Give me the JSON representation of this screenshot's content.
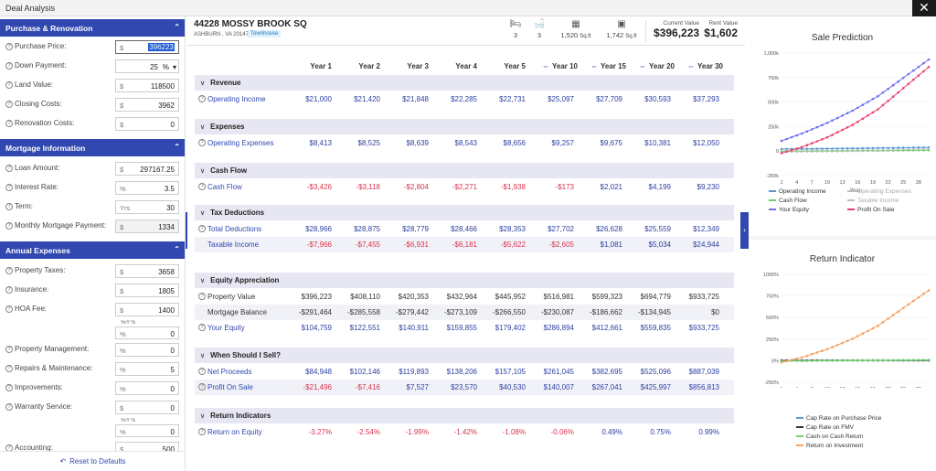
{
  "window": {
    "title": "Deal Analysis",
    "close": "✕"
  },
  "left": {
    "sections": {
      "purchase": "Purchase & Renovation",
      "mortgage": "Mortgage Information",
      "expenses": "Annual Expenses"
    },
    "fields": {
      "purchase_price": {
        "label": "Purchase Price:",
        "prefix": "$",
        "value": "396223"
      },
      "down_payment": {
        "label": "Down Payment:",
        "value": "25",
        "unit": "%"
      },
      "land_value": {
        "label": "Land Value:",
        "prefix": "$",
        "value": "118500"
      },
      "closing_costs": {
        "label": "Closing Costs:",
        "prefix": "$",
        "value": "3962"
      },
      "renovation_costs": {
        "label": "Renovation Costs:",
        "prefix": "$",
        "value": "0"
      },
      "loan_amount": {
        "label": "Loan Amount:",
        "prefix": "$",
        "value": "297167.25"
      },
      "interest_rate": {
        "label": "Interest Rate:",
        "prefix": "%",
        "value": "3.5"
      },
      "term": {
        "label": "Term:",
        "prefix": "Yrs",
        "value": "30"
      },
      "monthly_payment": {
        "label": "Monthly Mortgage Payment:",
        "prefix": "$",
        "value": "1334"
      },
      "property_taxes": {
        "label": "Property Taxes:",
        "prefix": "$",
        "value": "3658"
      },
      "insurance": {
        "label": "Insurance:",
        "prefix": "$",
        "value": "1805"
      },
      "hoa_fee": {
        "label": "HOA Fee:",
        "prefix": "$",
        "value": "1400"
      },
      "hoa_yoy": {
        "prefix": "%",
        "value": "0"
      },
      "property_management": {
        "label": "Property Management:",
        "prefix": "%",
        "value": "0"
      },
      "repairs": {
        "label": "Repairs & Maintenance:",
        "prefix": "%",
        "value": "5"
      },
      "improvements": {
        "label": "Improvements:",
        "prefix": "%",
        "value": "0"
      },
      "warranty": {
        "label": "Warranty Service:",
        "prefix": "$",
        "value": "0"
      },
      "warranty_yoy": {
        "prefix": "%",
        "value": "0"
      },
      "accounting": {
        "label": "Accounting:",
        "prefix": "$",
        "value": "500"
      }
    },
    "yoy_label": "YoY %",
    "reset": "Reset to Defaults"
  },
  "header": {
    "address": "44228 MOSSY BROOK SQ",
    "city": "ASHBURN , VA 20147",
    "type": "Townhouse",
    "beds": "3",
    "baths": "3",
    "sqft": "1,520",
    "sqft_unit": "Sq.ft",
    "lot": "1,742",
    "lot_unit": "Sq.ft",
    "current_value_label": "Current Value",
    "current_value": "$396,223",
    "rent_value_label": "Rent Value",
    "rent_value": "$1,602"
  },
  "table": {
    "columns": [
      "Year 1",
      "Year 2",
      "Year 3",
      "Year 4",
      "Year 5",
      "Year 10",
      "Year 15",
      "Year 20",
      "Year 30"
    ],
    "sections": [
      {
        "title": "Revenue",
        "rows": [
          {
            "name": "Operating Income",
            "values": [
              "$21,000",
              "$21,420",
              "$21,848",
              "$22,285",
              "$22,731",
              "$25,097",
              "$27,709",
              "$30,593",
              "$37,293"
            ]
          }
        ]
      },
      {
        "title": "Expenses",
        "rows": [
          {
            "name": "Operating Expenses",
            "values": [
              "$8,413",
              "$8,525",
              "$8,639",
              "$8,543",
              "$8,656",
              "$9,257",
              "$9,675",
              "$10,381",
              "$12,050"
            ]
          }
        ]
      },
      {
        "title": "Cash Flow",
        "rows": [
          {
            "name": "Cash Flow",
            "values": [
              "-$3,426",
              "-$3,118",
              "-$2,804",
              "-$2,271",
              "-$1,938",
              "-$173",
              "$2,021",
              "$4,199",
              "$9,230"
            ]
          }
        ]
      },
      {
        "title": "Tax Deductions",
        "rows": [
          {
            "name": "Total Deductions",
            "values": [
              "$28,966",
              "$28,875",
              "$28,779",
              "$28,466",
              "$28,353",
              "$27,702",
              "$26,628",
              "$25,559",
              "$12,349"
            ]
          },
          {
            "name": "Taxable Income",
            "values": [
              "-$7,966",
              "-$7,455",
              "-$6,931",
              "-$6,181",
              "-$5,622",
              "-$2,605",
              "$1,081",
              "$5,034",
              "$24,944"
            ]
          }
        ]
      },
      {
        "title": "Equity Appreciation",
        "rows": [
          {
            "name": "Property Value",
            "values": [
              "$396,223",
              "$408,110",
              "$420,353",
              "$432,964",
              "$445,952",
              "$516,981",
              "$599,323",
              "$694,779",
              "$933,725"
            ]
          },
          {
            "name": "Mortgage Balance",
            "values": [
              "-$291,464",
              "-$285,558",
              "-$279,442",
              "-$273,109",
              "-$266,550",
              "-$230,087",
              "-$186,662",
              "-$134,945",
              "$0"
            ]
          },
          {
            "name": "Your Equity",
            "values": [
              "$104,759",
              "$122,551",
              "$140,911",
              "$159,855",
              "$179,402",
              "$286,894",
              "$412,661",
              "$559,835",
              "$933,725"
            ]
          }
        ]
      },
      {
        "title": "When Should I Sell?",
        "rows": [
          {
            "name": "Net Proceeds",
            "values": [
              "$84,948",
              "$102,146",
              "$119,893",
              "$138,206",
              "$157,105",
              "$261,045",
              "$382,695",
              "$525,096",
              "$887,039"
            ]
          },
          {
            "name": "Profit On Sale",
            "values": [
              "-$21,496",
              "-$7,416",
              "$7,527",
              "$23,570",
              "$40,530",
              "$140,007",
              "$267,041",
              "$425,997",
              "$856,813"
            ]
          }
        ]
      },
      {
        "title": "Return Indicators",
        "rows": [
          {
            "name": "Return on Equity",
            "values": [
              "-3.27%",
              "-2.54%",
              "-1.99%",
              "-1.42%",
              "-1.08%",
              "-0.06%",
              "0.49%",
              "0.75%",
              "0.99%"
            ]
          }
        ]
      }
    ]
  },
  "chart_data": [
    {
      "type": "line",
      "title": "Sale Prediction",
      "xlabel": "Year",
      "ylabel": "",
      "x_ticks": [
        "1",
        "4",
        "7",
        "10",
        "13",
        "16",
        "19",
        "22",
        "25",
        "28"
      ],
      "y_ticks": [
        "-250k",
        "0",
        "250k",
        "500k",
        "750k",
        "1,000k"
      ],
      "ylim": [
        -250000,
        1000000
      ],
      "xlim": [
        1,
        30
      ],
      "legend_position": "bottom",
      "series": [
        {
          "name": "Operating Income",
          "color": "#5b9bd5",
          "x": [
            1,
            5,
            10,
            15,
            20,
            30
          ],
          "values": [
            21000,
            22731,
            25097,
            27709,
            30593,
            37293
          ]
        },
        {
          "name": "Operating Expenses",
          "color": "#c0c0c0",
          "dim": true,
          "x": [
            1,
            5,
            10,
            15,
            20,
            30
          ],
          "values": [
            8413,
            8656,
            9257,
            9675,
            10381,
            12050
          ]
        },
        {
          "name": "Cash Flow",
          "color": "#6dd06d",
          "x": [
            1,
            5,
            10,
            15,
            20,
            30
          ],
          "values": [
            -3426,
            -1938,
            -173,
            2021,
            4199,
            9230
          ]
        },
        {
          "name": "Taxable Income",
          "color": "#c0c0c0",
          "dim": true,
          "x": [
            1,
            5,
            10,
            15,
            20,
            30
          ],
          "values": [
            -7966,
            -5622,
            -2605,
            1081,
            5034,
            24944
          ]
        },
        {
          "name": "Your Equity",
          "color": "#6f6ff0",
          "x": [
            1,
            5,
            10,
            15,
            20,
            30
          ],
          "values": [
            104759,
            179402,
            286894,
            412661,
            559835,
            933725
          ]
        },
        {
          "name": "Profit On Sale",
          "color": "#ec3f6a",
          "x": [
            1,
            5,
            10,
            15,
            20,
            30
          ],
          "values": [
            -21496,
            40530,
            140007,
            267041,
            425997,
            856813
          ]
        }
      ]
    },
    {
      "type": "line",
      "title": "Return Indicator",
      "xlabel": "Year",
      "ylabel": "",
      "x_ticks": [
        "1",
        "4",
        "7",
        "10",
        "13",
        "16",
        "19",
        "22",
        "25",
        "28"
      ],
      "y_ticks": [
        "-250%",
        "0%",
        "250%",
        "500%",
        "750%",
        "1000%"
      ],
      "ylim": [
        -250,
        1000
      ],
      "xlim": [
        1,
        30
      ],
      "legend_position": "bottom",
      "series": [
        {
          "name": "Cap Rate on Purchase Price",
          "color": "#5b9bd5",
          "x": [
            1,
            30
          ],
          "values": [
            3,
            6
          ]
        },
        {
          "name": "Cap Rate on FMV",
          "color": "#333333",
          "x": [
            1,
            30
          ],
          "values": [
            3,
            3
          ]
        },
        {
          "name": "Cash on Cash Return",
          "color": "#6dd06d",
          "x": [
            1,
            5,
            10,
            15,
            20,
            30
          ],
          "values": [
            -3,
            -2,
            0,
            2,
            4,
            9
          ]
        },
        {
          "name": "Return on Investment",
          "color": "#f4a060",
          "x": [
            1,
            5,
            10,
            15,
            20,
            30
          ],
          "values": [
            -20,
            38,
            133,
            254,
            405,
            815
          ]
        }
      ]
    }
  ]
}
